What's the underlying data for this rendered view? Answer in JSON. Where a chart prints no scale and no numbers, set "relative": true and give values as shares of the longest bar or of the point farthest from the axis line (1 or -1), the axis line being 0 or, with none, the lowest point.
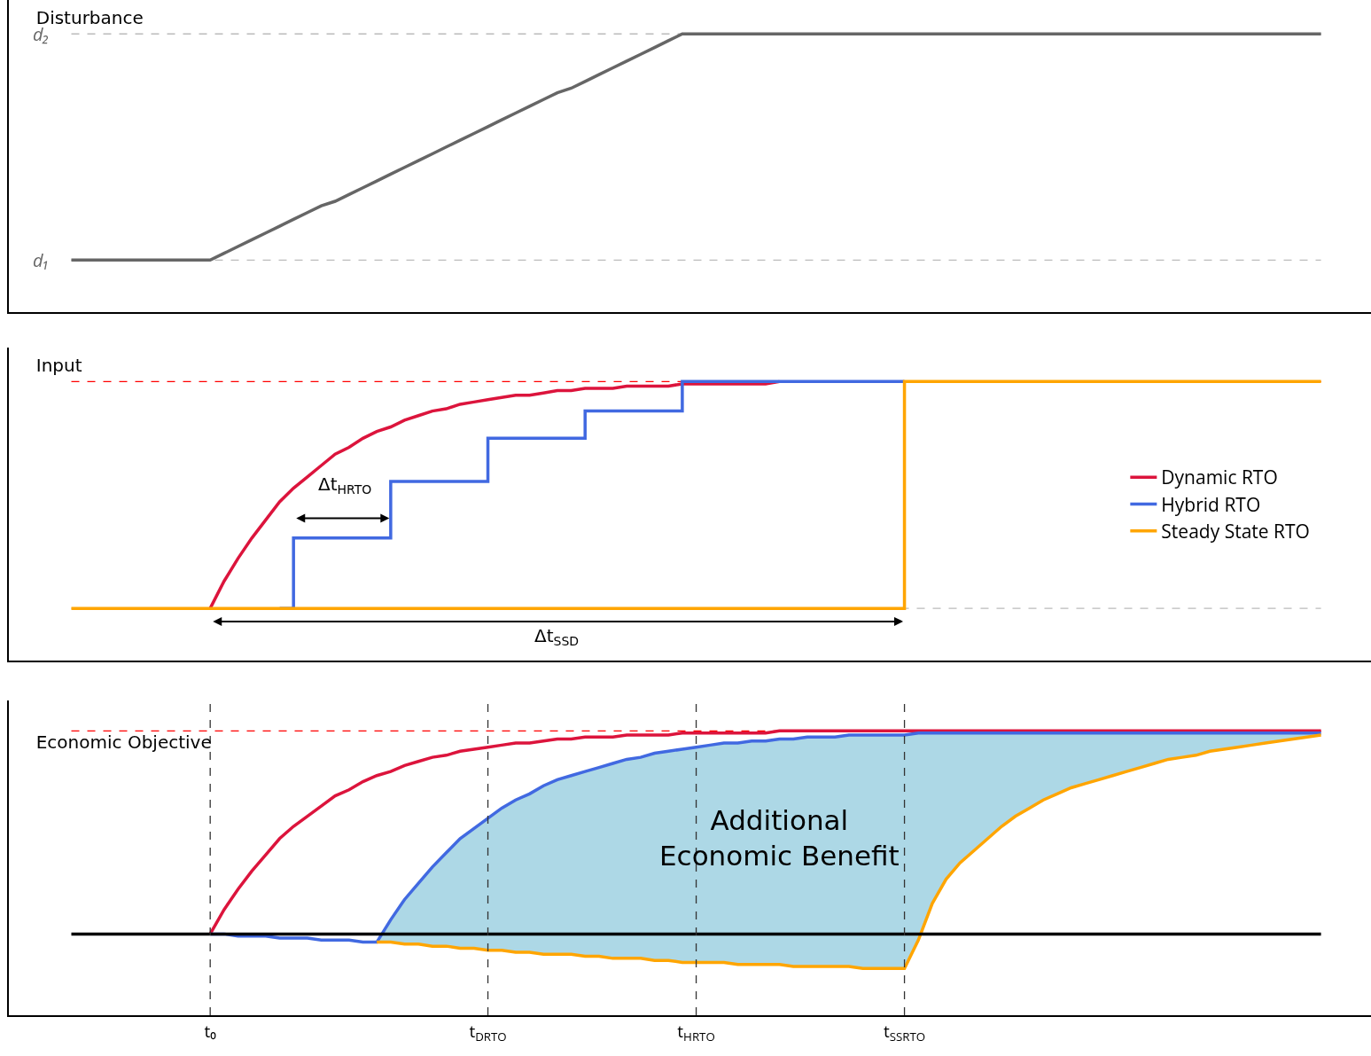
{
  "chart_data": [
    {
      "type": "line",
      "title": "Disturbance",
      "relative": true,
      "categories": [
        null,
        null,
        null,
        null,
        null,
        null,
        null,
        null,
        null,
        null,
        null,
        null,
        null,
        null,
        null,
        null,
        null,
        null,
        null,
        null,
        null,
        null,
        null,
        null,
        null,
        null,
        null,
        null,
        null,
        null,
        null,
        null,
        null,
        null,
        null,
        null,
        null,
        null,
        null,
        null,
        null,
        null,
        null,
        null,
        null,
        null,
        null,
        null,
        null,
        null,
        null,
        null,
        null,
        null,
        null,
        null,
        null,
        null,
        null,
        null,
        null,
        null,
        null,
        null,
        null,
        null,
        null,
        null,
        null,
        null,
        null,
        null,
        null,
        null,
        null,
        null,
        null,
        null,
        null,
        null,
        null,
        null,
        null,
        null,
        null,
        null,
        null,
        null,
        null,
        null,
        null
      ],
      "values": [
        0,
        0,
        0,
        0,
        0,
        0,
        0,
        0,
        0,
        0,
        0,
        0.03,
        0.06,
        0.09,
        0.12,
        0.15,
        0.18,
        0.21,
        0.24,
        0.26,
        0.29,
        0.32,
        0.35,
        0.38,
        0.41,
        0.44,
        0.47,
        0.5,
        0.53,
        0.56,
        0.59,
        0.62,
        0.65,
        0.68,
        0.71,
        0.74,
        0.76,
        0.79,
        0.82,
        0.85,
        0.88,
        0.91,
        0.94,
        0.97,
        1,
        1,
        1,
        1,
        1,
        1,
        1,
        1,
        1,
        1,
        1,
        1,
        1,
        1,
        1,
        1,
        1,
        1,
        1,
        1,
        1,
        1,
        1,
        1,
        1,
        1,
        1,
        1,
        1,
        1,
        1,
        1,
        1,
        1,
        1,
        1,
        1,
        1,
        1,
        1,
        1,
        1,
        1,
        1,
        1,
        1,
        1
      ],
      "color": "#666666",
      "tick_labels": false,
      "grid": false,
      "legend": false,
      "marker": "none",
      "line_style": "solid",
      "ref_lines": [
        {
          "axis": "y",
          "value": 0,
          "label": "d₁",
          "color": "#bbbbbb",
          "line_style": "dashed"
        },
        {
          "axis": "y",
          "value": 1,
          "label": "d₂",
          "color": "#bbbbbb",
          "line_style": "dashed"
        }
      ]
    },
    {
      "type": "line",
      "title": "Input",
      "relative": true,
      "categories": [
        null,
        null,
        null,
        null,
        null,
        null,
        null,
        null,
        null,
        null,
        null,
        null,
        null,
        null,
        null,
        null,
        null,
        null,
        null,
        null,
        null,
        null,
        null,
        null,
        null,
        null,
        null,
        null,
        null,
        null,
        null,
        null,
        null,
        null,
        null,
        null,
        null,
        null,
        null,
        null,
        null,
        null,
        null,
        null,
        null,
        null,
        null,
        null,
        null,
        null,
        null,
        null,
        null,
        null,
        null,
        null,
        null,
        null,
        null,
        null,
        null,
        null,
        null,
        null,
        null,
        null,
        null,
        null,
        null,
        null,
        null,
        null,
        null,
        null,
        null,
        null,
        null,
        null,
        null,
        null,
        null,
        null,
        null,
        null,
        null,
        null,
        null,
        null,
        null,
        null,
        null
      ],
      "tick_labels": false,
      "grid": false,
      "legend": "right",
      "marker": "none",
      "line_style": "solid",
      "series": [
        {
          "name": "Dynamic RTO",
          "color": "#dc143c",
          "values": [
            null,
            null,
            null,
            null,
            null,
            null,
            null,
            null,
            null,
            null,
            0,
            0.12,
            0.22,
            0.31,
            0.39,
            0.47,
            0.53,
            0.58,
            0.63,
            0.68,
            0.71,
            0.75,
            0.78,
            0.8,
            0.83,
            0.85,
            0.87,
            0.88,
            0.9,
            0.91,
            0.92,
            0.93,
            0.94,
            0.94,
            0.95,
            0.96,
            0.96,
            0.97,
            0.97,
            0.97,
            0.98,
            0.98,
            0.98,
            0.98,
            0.99,
            0.99,
            0.99,
            0.99,
            0.99,
            0.99,
            0.99,
            1,
            null,
            null,
            null,
            null,
            null,
            null,
            null,
            null,
            null,
            null,
            null,
            null,
            null,
            null,
            null,
            null,
            null,
            null,
            null,
            null,
            null,
            null,
            null,
            null,
            null,
            null,
            null,
            null,
            null,
            null,
            null,
            null,
            null,
            null,
            null,
            null,
            null,
            null,
            null
          ]
        },
        {
          "name": "Hybrid RTO",
          "type": "step",
          "color": "#4169e1",
          "values": [
            null,
            null,
            null,
            null,
            null,
            null,
            null,
            null,
            null,
            null,
            null,
            null,
            null,
            null,
            null,
            0,
            0.31,
            0.31,
            0.31,
            0.31,
            0.31,
            0.31,
            0.31,
            0.56,
            0.56,
            0.56,
            0.56,
            0.56,
            0.56,
            0.56,
            0.75,
            0.75,
            0.75,
            0.75,
            0.75,
            0.75,
            0.75,
            0.87,
            0.87,
            0.87,
            0.87,
            0.87,
            0.87,
            0.87,
            1,
            1,
            1,
            1,
            1,
            1,
            1,
            1,
            1,
            1,
            1,
            1,
            1,
            1,
            1,
            1,
            1,
            null,
            null,
            null,
            null,
            null,
            null,
            null,
            null,
            null,
            null,
            null,
            null,
            null,
            null,
            null,
            null,
            null,
            null,
            null,
            null,
            null,
            null,
            null,
            null,
            null,
            null,
            null,
            null,
            null,
            null
          ]
        },
        {
          "name": "Steady State RTO",
          "type": "step",
          "color": "#ffa500",
          "values": [
            0,
            0,
            0,
            0,
            0,
            0,
            0,
            0,
            0,
            0,
            0,
            0,
            0,
            0,
            0,
            0,
            0,
            0,
            0,
            0,
            0,
            0,
            0,
            0,
            0,
            0,
            0,
            0,
            0,
            0,
            0,
            0,
            0,
            0,
            0,
            0,
            0,
            0,
            0,
            0,
            0,
            0,
            0,
            0,
            0,
            0,
            0,
            0,
            0,
            0,
            0,
            0,
            0,
            0,
            0,
            0,
            0,
            0,
            0,
            0,
            1,
            1,
            1,
            1,
            1,
            1,
            1,
            1,
            1,
            1,
            1,
            1,
            1,
            1,
            1,
            1,
            1,
            1,
            1,
            1,
            1,
            1,
            1,
            1,
            1,
            1,
            1,
            1,
            1,
            1,
            1
          ]
        }
      ],
      "annotations": [
        "Δt$_{HRTO}$",
        "Δt$_{SSD}$"
      ],
      "ref_lines": [
        {
          "axis": "y",
          "value": 1,
          "color": "#ff0000",
          "line_style": "dashed"
        },
        {
          "axis": "y",
          "value": 0,
          "color": "#bbbbbb",
          "line_style": "dashed"
        }
      ]
    },
    {
      "type": "line",
      "title": "Economic Objective",
      "relative": true,
      "categories": [
        null,
        null,
        null,
        null,
        null,
        null,
        null,
        null,
        null,
        null,
        "t₀",
        null,
        null,
        null,
        null,
        null,
        null,
        null,
        null,
        null,
        null,
        null,
        null,
        null,
        null,
        null,
        null,
        null,
        null,
        null,
        "t$_{DRTO}$",
        null,
        null,
        null,
        null,
        null,
        null,
        null,
        null,
        null,
        null,
        null,
        null,
        null,
        null,
        "t$_{HRTO}$",
        null,
        null,
        null,
        null,
        null,
        null,
        null,
        null,
        null,
        null,
        null,
        null,
        null,
        null,
        "t$_{SSRTO}$",
        null,
        null,
        null,
        null,
        null,
        null,
        null,
        null,
        null,
        null,
        null,
        null,
        null,
        null,
        null,
        null,
        null,
        null,
        null,
        null,
        null,
        null,
        null,
        null,
        null,
        null,
        null,
        null,
        null,
        null
      ],
      "tick_labels": "x",
      "grid": false,
      "legend": false,
      "marker": "none",
      "line_style": "solid",
      "series": [
        {
          "color": "#dc143c",
          "values": [
            null,
            null,
            null,
            null,
            null,
            null,
            null,
            null,
            null,
            null,
            0,
            0.12,
            0.22,
            0.31,
            0.39,
            0.47,
            0.53,
            0.58,
            0.63,
            0.68,
            0.71,
            0.75,
            0.78,
            0.8,
            0.83,
            0.85,
            0.87,
            0.88,
            0.9,
            0.91,
            0.92,
            0.93,
            0.94,
            0.94,
            0.95,
            0.96,
            0.96,
            0.97,
            0.97,
            0.97,
            0.98,
            0.98,
            0.98,
            0.98,
            0.99,
            0.99,
            0.99,
            0.99,
            0.99,
            0.99,
            0.99,
            1,
            1,
            1,
            1,
            1,
            1,
            1,
            1,
            1,
            1,
            1,
            1,
            1,
            1,
            1,
            1,
            1,
            1,
            1,
            1,
            1,
            1,
            1,
            1,
            1,
            1,
            1,
            1,
            1,
            1,
            1,
            1,
            1,
            1,
            1,
            1,
            1,
            1,
            1,
            1
          ]
        },
        {
          "color": "#4169e1",
          "values": [
            null,
            null,
            null,
            null,
            null,
            null,
            null,
            null,
            null,
            null,
            0,
            0,
            -0.01,
            -0.01,
            -0.01,
            -0.02,
            -0.02,
            -0.02,
            -0.03,
            -0.03,
            -0.03,
            -0.04,
            -0.04,
            0.07,
            0.17,
            0.25,
            0.33,
            0.4,
            0.47,
            0.52,
            0.57,
            0.62,
            0.66,
            0.69,
            0.73,
            0.76,
            0.78,
            0.8,
            0.82,
            0.84,
            0.86,
            0.87,
            0.89,
            0.9,
            0.91,
            0.92,
            0.93,
            0.94,
            0.94,
            0.95,
            0.95,
            0.96,
            0.96,
            0.97,
            0.97,
            0.97,
            0.98,
            0.98,
            0.98,
            0.98,
            0.98,
            0.99,
            0.99,
            0.99,
            0.99,
            0.99,
            0.99,
            0.99,
            0.99,
            0.99,
            0.99,
            0.99,
            0.99,
            0.99,
            0.99,
            0.99,
            0.99,
            0.99,
            0.99,
            0.99,
            0.99,
            0.99,
            0.99,
            0.99,
            0.99,
            0.99,
            0.99,
            0.99,
            0.99,
            0.99,
            0.99
          ],
          "lower": [
            0,
            0,
            0,
            0,
            0,
            0,
            0,
            0,
            0,
            0,
            0,
            0,
            -0.01,
            -0.01,
            -0.01,
            -0.02,
            -0.02,
            -0.02,
            -0.03,
            -0.03,
            -0.03,
            -0.04,
            -0.04,
            -0.04,
            -0.05,
            -0.05,
            -0.06,
            -0.06,
            -0.07,
            -0.07,
            -0.08,
            -0.08,
            -0.09,
            -0.09,
            -0.1,
            -0.1,
            -0.1,
            -0.11,
            -0.11,
            -0.12,
            -0.12,
            -0.12,
            -0.13,
            -0.13,
            -0.14,
            -0.14,
            -0.14,
            -0.14,
            -0.15,
            -0.15,
            -0.15,
            -0.15,
            -0.16,
            -0.16,
            -0.16,
            -0.16,
            -0.16,
            -0.17,
            -0.17,
            -0.17,
            -0.17,
            -0.03,
            0.15,
            0.27,
            0.35,
            0.41,
            0.47,
            0.53,
            0.58,
            0.62,
            0.66,
            0.69,
            0.72,
            0.74,
            0.76,
            0.78,
            0.8,
            0.82,
            0.84,
            0.86,
            0.87,
            0.88,
            0.9,
            0.91,
            0.92,
            0.93,
            0.94,
            0.95,
            0.96,
            0.97,
            0.98
          ],
          "upper": [
            0,
            0,
            0,
            0,
            0,
            0,
            0,
            0,
            0,
            0,
            0,
            0,
            -0.01,
            -0.01,
            -0.01,
            -0.02,
            -0.02,
            -0.02,
            -0.03,
            -0.03,
            -0.03,
            -0.04,
            -0.04,
            0.07,
            0.17,
            0.25,
            0.33,
            0.4,
            0.47,
            0.52,
            0.57,
            0.62,
            0.66,
            0.69,
            0.73,
            0.76,
            0.78,
            0.8,
            0.82,
            0.84,
            0.86,
            0.87,
            0.89,
            0.9,
            0.91,
            0.92,
            0.93,
            0.94,
            0.94,
            0.95,
            0.95,
            0.96,
            0.96,
            0.97,
            0.97,
            0.97,
            0.98,
            0.98,
            0.98,
            0.98,
            0.98,
            0.99,
            0.99,
            0.99,
            0.99,
            0.99,
            0.99,
            0.99,
            0.99,
            0.99,
            0.99,
            0.99,
            0.99,
            0.99,
            0.99,
            0.99,
            0.99,
            0.99,
            0.99,
            0.99,
            0.99,
            0.99,
            0.99,
            0.99,
            0.99,
            0.99,
            0.99,
            0.99,
            0.99,
            0.99,
            0.99
          ]
        },
        {
          "color": "#ffa500",
          "values": [
            null,
            null,
            null,
            null,
            null,
            null,
            null,
            null,
            null,
            null,
            null,
            null,
            null,
            null,
            null,
            null,
            null,
            null,
            null,
            null,
            null,
            null,
            -0.04,
            -0.04,
            -0.05,
            -0.05,
            -0.06,
            -0.06,
            -0.07,
            -0.07,
            -0.08,
            -0.08,
            -0.09,
            -0.09,
            -0.1,
            -0.1,
            -0.1,
            -0.11,
            -0.11,
            -0.12,
            -0.12,
            -0.12,
            -0.13,
            -0.13,
            -0.14,
            -0.14,
            -0.14,
            -0.14,
            -0.15,
            -0.15,
            -0.15,
            -0.15,
            -0.16,
            -0.16,
            -0.16,
            -0.16,
            -0.16,
            -0.17,
            -0.17,
            -0.17,
            -0.17,
            -0.03,
            0.15,
            0.27,
            0.35,
            0.41,
            0.47,
            0.53,
            0.58,
            0.62,
            0.66,
            0.69,
            0.72,
            0.74,
            0.76,
            0.78,
            0.8,
            0.82,
            0.84,
            0.86,
            0.87,
            0.88,
            0.9,
            0.91,
            0.92,
            0.93,
            0.94,
            0.95,
            0.96,
            0.97,
            0.98
          ]
        }
      ],
      "annotations": [
        "Additional\nEconomic Benefit"
      ],
      "ref_lines": [
        {
          "axis": "y",
          "value": 1,
          "color": "#ff0000",
          "line_style": "dashed"
        },
        {
          "axis": "y",
          "value": 0,
          "color": "#000000",
          "line_style": "solid"
        },
        {
          "axis": "x",
          "value": "t₀",
          "color": "#333333",
          "line_style": "dashed"
        },
        {
          "axis": "x",
          "value": "t$_{DRTO}$",
          "color": "#333333",
          "line_style": "dashed"
        },
        {
          "axis": "x",
          "value": "t$_{HRTO}$",
          "color": "#333333",
          "line_style": "dashed"
        },
        {
          "axis": "x",
          "value": "t$_{SSRTO}$",
          "color": "#333333",
          "line_style": "dashed"
        }
      ]
    }
  ]
}
